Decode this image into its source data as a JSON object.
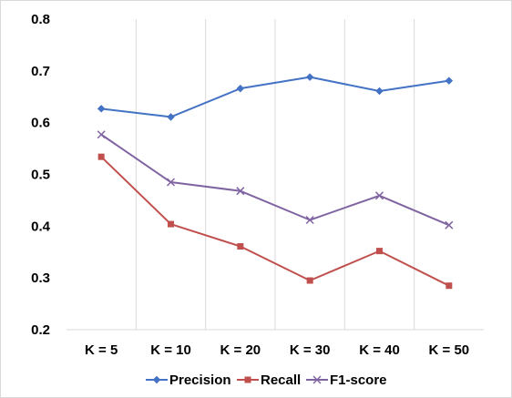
{
  "chart_data": {
    "type": "line",
    "categories": [
      "K = 5",
      "K = 10",
      "K = 20",
      "K = 30",
      "K = 40",
      "K = 50"
    ],
    "series": [
      {
        "name": "Precision",
        "values": [
          0.627,
          0.611,
          0.666,
          0.688,
          0.661,
          0.681
        ],
        "color": "#4472C4",
        "marker": "diamond"
      },
      {
        "name": "Recall",
        "values": [
          0.534,
          0.404,
          0.361,
          0.295,
          0.352,
          0.285
        ],
        "color": "#C0504D",
        "marker": "square"
      },
      {
        "name": "F1-score",
        "values": [
          0.577,
          0.485,
          0.468,
          0.412,
          0.459,
          0.402
        ],
        "color": "#8064A2",
        "marker": "x"
      }
    ],
    "yticks": [
      "0.2",
      "0.3",
      "0.4",
      "0.5",
      "0.6",
      "0.7",
      "0.8"
    ],
    "ylim": [
      0.2,
      0.8
    ],
    "title": "",
    "xlabel": "",
    "ylabel": "",
    "grid": "vertical",
    "legend": "bottom"
  }
}
